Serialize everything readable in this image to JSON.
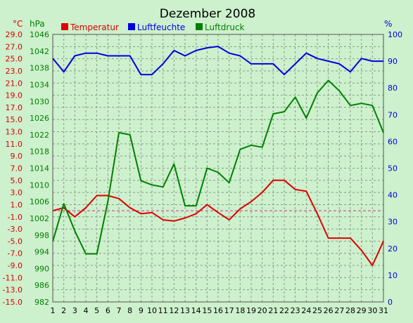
{
  "chart_data": {
    "type": "line",
    "title": "Dezember 2008",
    "x": [
      1,
      2,
      3,
      4,
      5,
      6,
      7,
      8,
      9,
      10,
      11,
      12,
      13,
      14,
      15,
      16,
      17,
      18,
      19,
      20,
      21,
      22,
      23,
      24,
      25,
      26,
      27,
      28,
      29,
      30,
      31
    ],
    "axes": {
      "temperature": {
        "unit": "°C",
        "range": [
          -15,
          29
        ],
        "ticks": [
          "29.0",
          "27.0",
          "25.0",
          "23.0",
          "21.0",
          "19.0",
          "17.0",
          "15.0",
          "13.0",
          "11.0",
          "9.0",
          "7.0",
          "5.0",
          "3.0",
          "1.0",
          "-1.0",
          "-3.0",
          "-5.0",
          "-7.0",
          "-9.0",
          "-11.0",
          "-13.0",
          "-15.0"
        ]
      },
      "pressure": {
        "unit": "hPa",
        "range": [
          982,
          1046
        ],
        "ticks": [
          "1046",
          "1042",
          "1038",
          "1034",
          "1030",
          "1026",
          "1022",
          "1018",
          "1014",
          "1010",
          "1006",
          "1002",
          "998",
          "994",
          "990",
          "986",
          "982"
        ]
      },
      "humidity": {
        "unit": "%",
        "range": [
          0,
          100
        ],
        "ticks": [
          "100",
          "90",
          "80",
          "70",
          "60",
          "50",
          "40",
          "30",
          "20",
          "10",
          "0"
        ]
      }
    },
    "series": [
      {
        "name": "Temperatur",
        "color": "#dd0000",
        "axis": "temperature",
        "values": [
          0.0,
          0.5,
          -1.0,
          0.5,
          2.5,
          2.5,
          2.0,
          0.5,
          -0.5,
          -0.3,
          -1.5,
          -1.7,
          -1.2,
          -0.5,
          1.0,
          -0.3,
          -1.5,
          0.3,
          1.5,
          3.0,
          5.0,
          5.0,
          3.5,
          3.2,
          -0.5,
          -4.5,
          -4.5,
          -4.5,
          -6.5,
          -9.0,
          -5.0
        ]
      },
      {
        "name": "Luftfeuchte",
        "color": "#0000dd",
        "axis": "humidity",
        "values": [
          91,
          86,
          92,
          93,
          93,
          92,
          92,
          92,
          85,
          85,
          89,
          94,
          92,
          94,
          95,
          95.5,
          93,
          92,
          89,
          89,
          89,
          85,
          89,
          93,
          91,
          90,
          89,
          86,
          91,
          90,
          90
        ]
      },
      {
        "name": "Luftdruck",
        "color": "#008000",
        "axis": "pressure",
        "values": [
          996.5,
          1005.5,
          999,
          993.5,
          993.5,
          1006,
          1022.5,
          1022,
          1011,
          1010,
          1009.5,
          1015,
          1005,
          1005,
          1014,
          1013,
          1010.5,
          1018.5,
          1019.5,
          1019,
          1027,
          1027.5,
          1031,
          1026,
          1032,
          1035,
          1032.5,
          1029,
          1029.5,
          1029,
          1022.5
        ]
      }
    ],
    "reference_line": {
      "axis": "temperature",
      "value": 0,
      "color": "#cc3388"
    },
    "grid": true,
    "legend": "top"
  }
}
